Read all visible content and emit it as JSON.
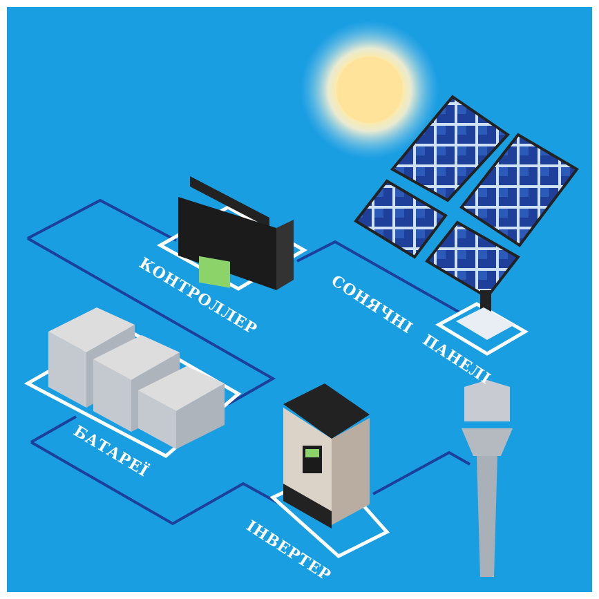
{
  "nodes": [
    {
      "label": "КОНТРОЛЛЕР"
    },
    {
      "label": "СОНЯЧНІ ПАНЕЛІ"
    },
    {
      "label": "БАТАРЕЇ"
    },
    {
      "label": "ІНВЕРТЕР"
    }
  ]
}
